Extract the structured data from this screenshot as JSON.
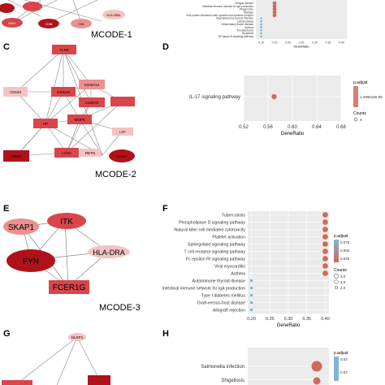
{
  "panels": {
    "C": "C",
    "D": "D",
    "E": "E",
    "F": "F",
    "G": "G",
    "H": "H"
  },
  "mcode_labels": {
    "m1": "MCODE-1",
    "m2": "MCODE-2",
    "m3": "MCODE-3"
  },
  "network_a": {
    "nodes": [
      "GNLY",
      "CD96",
      "CD8",
      "HLA-DRB1"
    ]
  },
  "network_c": {
    "nodes": [
      "TLR8",
      "CD163",
      "S100A12",
      "S100A8",
      "S100A9",
      "HP",
      "MMP9",
      "LTF",
      "LCN2",
      "RETN",
      "ARG1",
      "CAMP"
    ]
  },
  "network_e": {
    "nodes": [
      "SKAP1",
      "ITK",
      "HLA-DRA",
      "FYN",
      "FCER1G"
    ]
  },
  "network_g": {
    "nodes": [
      "NLRP1"
    ]
  },
  "colors": {
    "dark_red": "#b0121a",
    "mid_red": "#d9454b",
    "light_red": "#ee8f8f",
    "pale_red": "#f5c2c2",
    "dot_high": "#cf6b58",
    "dot_low": "#7fb4d6",
    "edge": "#888888"
  },
  "chart_data": [
    {
      "panel": "B",
      "type": "scatter",
      "categories": [
        "Chagas disease",
        "Intestinal immune network for IgA production",
        "Phagosome",
        "Measles",
        "Viral protein interaction with cytokine and cytokine receptor",
        "Staphylococcus aureus infection",
        "Leishmaniasis",
        "Inflammatory bowel disease",
        "Asthma",
        "Toxoplasmosis",
        "Apoptosis",
        "NF-kappa B signaling pathway"
      ],
      "x": [
        0.15,
        0.15,
        0.15,
        0.15,
        0.15,
        0.1,
        0.1,
        0.1,
        0.1,
        0.1,
        0.1,
        0.1
      ],
      "xticks": [
        "0.10",
        "0.15",
        "0.20",
        "0.25",
        "0.30",
        "0.35",
        "0.40"
      ],
      "xlim": [
        0.08,
        0.42
      ],
      "xlabel": "GeneRatio"
    },
    {
      "panel": "D",
      "type": "scatter",
      "categories": [
        "IL-17 signaling pathway"
      ],
      "x": [
        0.57
      ],
      "xticks": [
        "0.52",
        "0.56",
        "0.60",
        "0.64",
        "0.68"
      ],
      "xlim": [
        0.52,
        0.68
      ],
      "xlabel": "GeneRatio",
      "legend": {
        "title": "p.adjust",
        "colorbar_label": "1.290618e-05",
        "counts_title": "Counts",
        "counts": [
          "4"
        ]
      }
    },
    {
      "panel": "F",
      "type": "scatter",
      "categories": [
        "Tuberculosis",
        "Phospholipase D signaling pathway",
        "Natural killer cell mediated cytotoxicity",
        "Platelet activation",
        "Sphingolipid signaling pathway",
        "T cell receptor signaling pathway",
        "Fc epsilon RI signaling pathway",
        "Viral myocarditis",
        "Asthma",
        "Autoimmune thyroid disease",
        "Intestinal immune network for IgA production",
        "Type I diabetes mellitus",
        "Graft-versus-host disease",
        "Allograft rejection"
      ],
      "x": [
        0.4,
        0.4,
        0.4,
        0.4,
        0.4,
        0.4,
        0.4,
        0.4,
        0.4,
        0.2,
        0.2,
        0.2,
        0.2,
        0.2
      ],
      "high": [
        true,
        true,
        true,
        true,
        true,
        true,
        true,
        true,
        true,
        false,
        false,
        false,
        false,
        false
      ],
      "xticks": [
        "0.20",
        "0.25",
        "0.30",
        "0.35",
        "0.40"
      ],
      "xlim": [
        0.19,
        0.41
      ],
      "xlabel": "GeneRatio",
      "legend": {
        "title": "p.adjust",
        "ticks": [
          "0.075",
          "0.050",
          "0.025"
        ],
        "counts_title": "Counts",
        "counts": [
          "3.0",
          "2.5",
          "2.0"
        ]
      }
    },
    {
      "panel": "H",
      "type": "scatter",
      "categories": [
        "Salmonella infection",
        "Shigellosis"
      ],
      "legend": {
        "title": "p.adjust",
        "ticks": [
          "0.03",
          "0.02"
        ]
      }
    }
  ]
}
